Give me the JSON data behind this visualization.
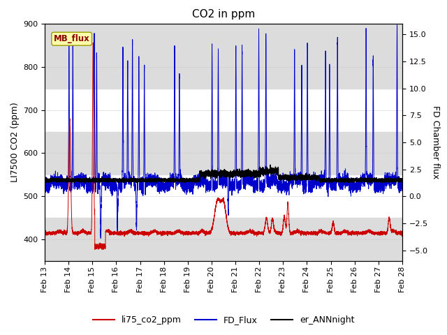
{
  "title": "CO2 in ppm",
  "ylabel_left": "LI7500 CO2 (ppm)",
  "ylabel_right": "FD Chamber flux",
  "ylim_left": [
    350,
    900
  ],
  "ylim_right": [
    -6,
    16
  ],
  "xtick_labels": [
    "Feb 13",
    "Feb 14",
    "Feb 15",
    "Feb 16",
    "Feb 17",
    "Feb 18",
    "Feb 19",
    "Feb 20",
    "Feb 21",
    "Feb 22",
    "Feb 23",
    "Feb 24",
    "Feb 25",
    "Feb 26",
    "Feb 27",
    "Feb 28"
  ],
  "mb_flux_label": "MB_flux",
  "legend_labels": [
    "li75_co2_ppm",
    "FD_Flux",
    "er_ANNnight"
  ],
  "color_red": "#cc0000",
  "color_blue": "#0000cc",
  "color_black": "#000000",
  "background_color": "#ffffff",
  "band_color": "#dcdcdc",
  "title_fontsize": 11,
  "axis_fontsize": 9,
  "tick_fontsize": 8
}
